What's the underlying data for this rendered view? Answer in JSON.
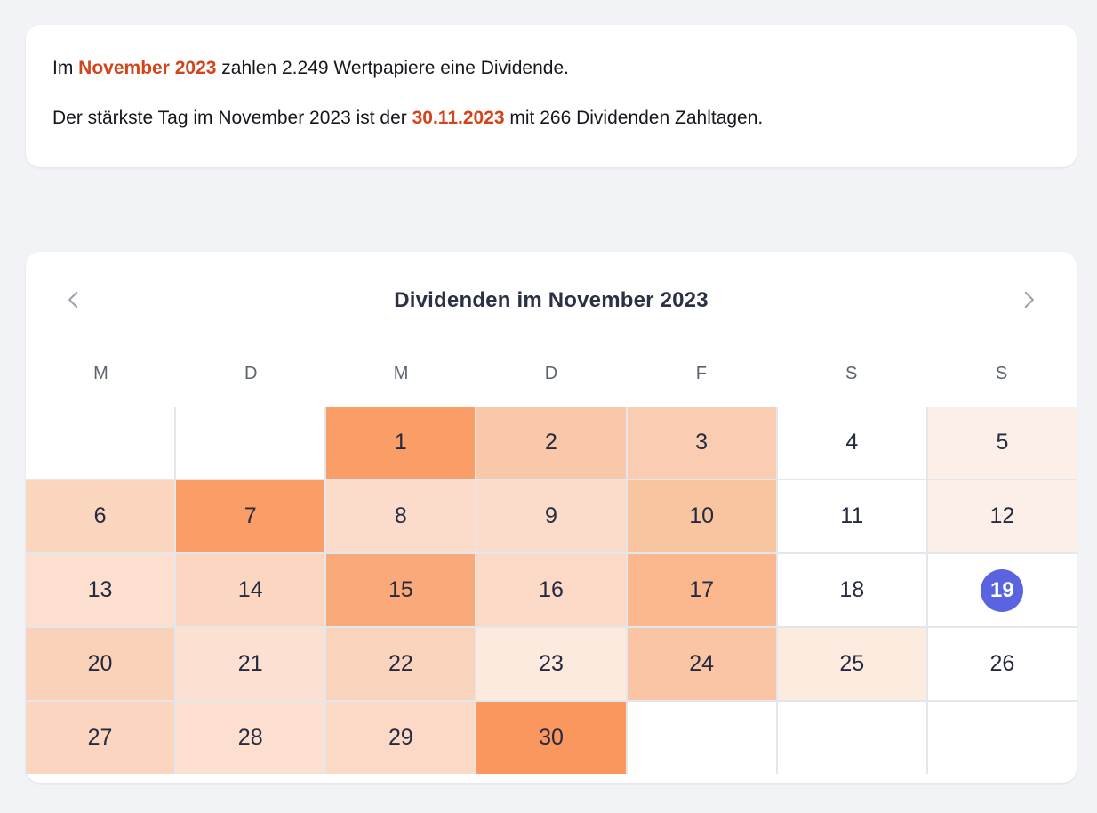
{
  "page": {
    "background": "#F2F3F6"
  },
  "summary_card": {
    "highlight_color": "#D2441A",
    "line1": {
      "prefix": "Im ",
      "highlight": "November 2023",
      "suffix": " zahlen 2.249 Wertpapiere eine Dividende."
    },
    "line2": {
      "prefix": "Der stärkste Tag im November 2023 ist der ",
      "highlight": "30.11.2023",
      "suffix": " mit 266 Dividenden Zahltagen."
    }
  },
  "calendar": {
    "title": "Dividenden im November 2023",
    "prev_icon": "chevron-left",
    "next_icon": "chevron-right",
    "weekdays": [
      "M",
      "D",
      "M",
      "D",
      "F",
      "S",
      "S"
    ],
    "leading_empty": 2,
    "trailing_empty": 3,
    "today": 19,
    "today_color": "#5A63E0",
    "grid_line_color": "#E3E6EB",
    "days": [
      {
        "day": 1,
        "color": "#FB9D66"
      },
      {
        "day": 2,
        "color": "#F9C8A8"
      },
      {
        "day": 3,
        "color": "#FACDB3"
      },
      {
        "day": 4,
        "color": "#FFFFFF"
      },
      {
        "day": 5,
        "color": "#FCEFE7"
      },
      {
        "day": 6,
        "color": "#FBD6BF"
      },
      {
        "day": 7,
        "color": "#FB9D66"
      },
      {
        "day": 8,
        "color": "#FBDCCB"
      },
      {
        "day": 9,
        "color": "#FBDCCA"
      },
      {
        "day": 10,
        "color": "#F9C4A0"
      },
      {
        "day": 11,
        "color": "#FFFFFF"
      },
      {
        "day": 12,
        "color": "#FCEFE8"
      },
      {
        "day": 13,
        "color": "#FCDFCF"
      },
      {
        "day": 14,
        "color": "#FBD7C2"
      },
      {
        "day": 15,
        "color": "#FAA97A"
      },
      {
        "day": 16,
        "color": "#FBD9C6"
      },
      {
        "day": 17,
        "color": "#FBB88E"
      },
      {
        "day": 18,
        "color": "#FFFFFF"
      },
      {
        "day": 19,
        "color": "#FFFFFF"
      },
      {
        "day": 20,
        "color": "#FAD2BA"
      },
      {
        "day": 21,
        "color": "#FCE0D1"
      },
      {
        "day": 22,
        "color": "#FAD3BD"
      },
      {
        "day": 23,
        "color": "#FDEADF"
      },
      {
        "day": 24,
        "color": "#F9C5A4"
      },
      {
        "day": 25,
        "color": "#FCEBDE"
      },
      {
        "day": 26,
        "color": "#FFFFFF"
      },
      {
        "day": 27,
        "color": "#FBD5BF"
      },
      {
        "day": 28,
        "color": "#FCDFCE"
      },
      {
        "day": 29,
        "color": "#FBD9C6"
      },
      {
        "day": 30,
        "color": "#FA975F"
      }
    ]
  }
}
